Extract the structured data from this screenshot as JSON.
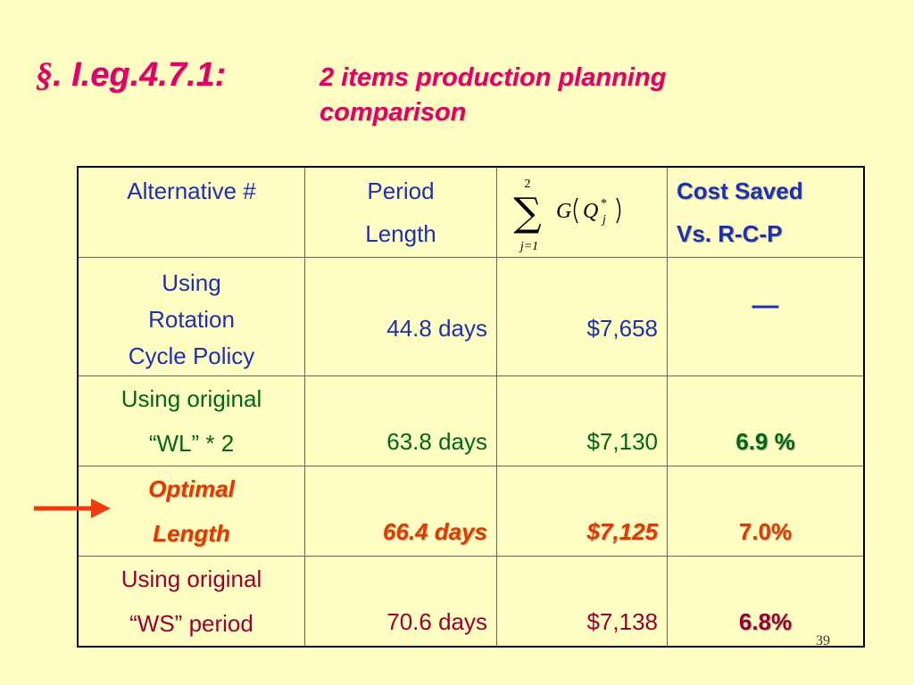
{
  "title": {
    "section_symbol": "§",
    "prefix_rest": ". I.eg.4.7.1:",
    "main_line1": "2 items production planning",
    "main_line2": "comparison"
  },
  "table": {
    "headers": {
      "col1": "Alternative #",
      "col2_line1": "Period",
      "col2_line2": "Length",
      "col3_formula": {
        "upper": "2",
        "lower": "j=1",
        "function": "G",
        "variable": "Q",
        "superscript": "*",
        "subscript": "j"
      },
      "col4_line1": "Cost Saved",
      "col4_line2": "Vs. R-C-P"
    },
    "rows": [
      {
        "alt_lines": [
          "Using",
          "Rotation",
          "Cycle Policy"
        ],
        "period": "44.8 days",
        "cost": "$7,658",
        "saved": "—"
      },
      {
        "alt_lines": [
          "Using original",
          "“WL” * 2"
        ],
        "period": "63.8 days",
        "cost": "$7,130",
        "saved": "6.9 %"
      },
      {
        "alt_lines": [
          "Optimal",
          "Length"
        ],
        "period": "66.4 days",
        "cost": "$7,125",
        "saved": "7.0%"
      },
      {
        "alt_lines": [
          "Using original",
          "“WS” period"
        ],
        "period": "70.6 days",
        "cost": "$7,138",
        "saved": "6.8%"
      }
    ]
  },
  "page_number": "39",
  "colors": {
    "background": "#FFFFC4",
    "title": "#E0006A",
    "blue": "#1E2FB0",
    "green": "#00661A",
    "orange": "#E03A00",
    "maroon": "#990033",
    "arrow": "#F03A10"
  },
  "icons": {
    "arrow": "right-arrow-icon"
  }
}
